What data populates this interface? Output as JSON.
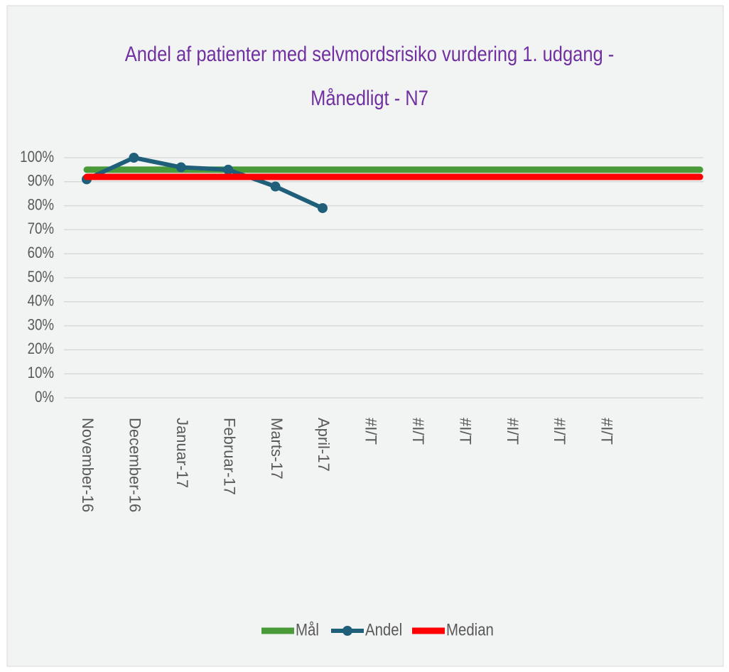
{
  "chart_data": {
    "type": "line",
    "title": [
      "Andel af patienter med selvmordsrisiko vurdering 1. udgang -",
      "Månedligt - N7"
    ],
    "categories": [
      "November-16",
      "December-16",
      "Januar-17",
      "Februar-17",
      "Marts-17",
      "April-17",
      "#I/T",
      "#I/T",
      "#I/T",
      "#I/T",
      "#I/T",
      "#I/T",
      null,
      null
    ],
    "series": [
      {
        "name": "Mål",
        "color": "#4a9a3a",
        "values": [
          95,
          95,
          95,
          95,
          95,
          95,
          95,
          95,
          95,
          95,
          95,
          95,
          95,
          95
        ]
      },
      {
        "name": "Andel",
        "color": "#1f5f7a",
        "values": [
          91,
          100,
          96,
          95,
          88,
          79,
          null,
          null,
          null,
          null,
          null,
          null,
          null,
          null
        ]
      },
      {
        "name": "Median",
        "color": "#ff0000",
        "values": [
          92,
          92,
          92,
          92,
          92,
          92,
          92,
          92,
          92,
          92,
          92,
          92,
          92,
          92
        ]
      }
    ],
    "ylim": [
      0,
      100
    ],
    "yticks": [
      {
        "value": 0,
        "label": "0%"
      },
      {
        "value": 10,
        "label": "10%"
      },
      {
        "value": 20,
        "label": "20%"
      },
      {
        "value": 30,
        "label": "30%"
      },
      {
        "value": 40,
        "label": "40%"
      },
      {
        "value": 50,
        "label": "50%"
      },
      {
        "value": 60,
        "label": "60%"
      },
      {
        "value": 70,
        "label": "70%"
      },
      {
        "value": 80,
        "label": "80%"
      },
      {
        "value": 90,
        "label": "90%"
      },
      {
        "value": 100,
        "label": "100%"
      }
    ],
    "grid": true,
    "legend": "bottom"
  }
}
